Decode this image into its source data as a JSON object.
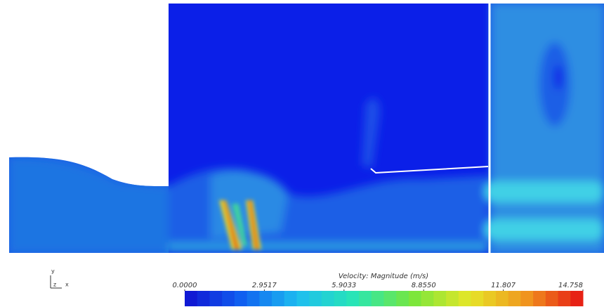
{
  "colorbar": {
    "title": "Velocity: Magnitude (m/s)",
    "range": [
      0,
      14.758
    ],
    "ticks": [
      {
        "value": 0,
        "label": "0.0000"
      },
      2.9517,
      5.9033,
      {
        "value": 8.855,
        "label": "8.8550"
      },
      11.807,
      14.758
    ]
  },
  "triad": {
    "labels": [
      "y",
      "z",
      "x"
    ]
  }
}
